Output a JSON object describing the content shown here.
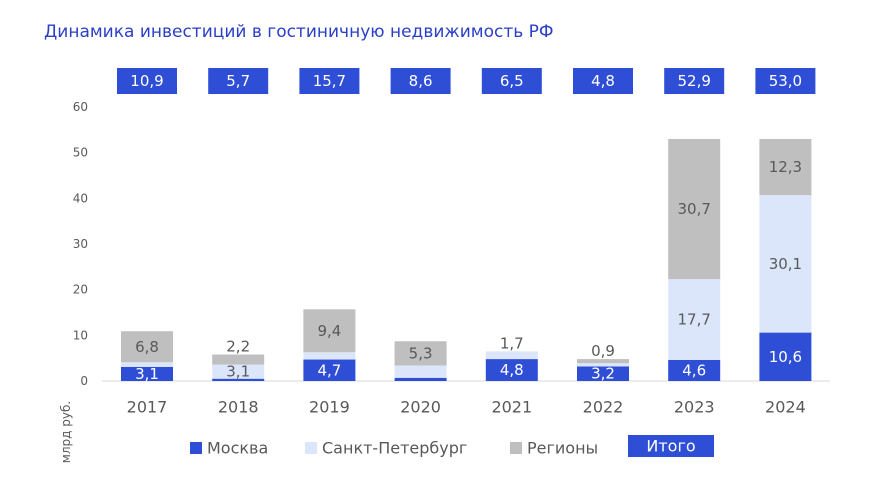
{
  "title": "Динамика инвестиций в гостиничную недвижимость РФ",
  "chart_data": {
    "type": "bar",
    "stacked": true,
    "title": "Динамика инвестиций в гостиничную недвижимость РФ",
    "xlabel": "",
    "ylabel": "млрд руб.",
    "ylim": [
      0,
      60
    ],
    "yticks": [
      0,
      10,
      20,
      30,
      40,
      50,
      60
    ],
    "grid": false,
    "legend_position": "bottom",
    "categories": [
      "2017",
      "2018",
      "2019",
      "2020",
      "2021",
      "2022",
      "2023",
      "2024"
    ],
    "series": [
      {
        "name": "Москва",
        "color": "#2e4ed6",
        "values": [
          3.1,
          0.5,
          4.7,
          0.7,
          4.8,
          3.2,
          4.6,
          10.6
        ],
        "labels": [
          "3,1",
          "",
          "4,7",
          "",
          "4,8",
          "3,2",
          "4,6",
          "10,6"
        ]
      },
      {
        "name": "Санкт-Петербург",
        "color": "#dce6fb",
        "values": [
          1.0,
          3.1,
          1.6,
          2.7,
          1.7,
          0.7,
          17.7,
          30.1
        ],
        "labels": [
          "",
          "3,1",
          "",
          "2,7",
          "1,7",
          "",
          "17,7",
          "30,1"
        ]
      },
      {
        "name": "Регионы",
        "color": "#bfbfbf",
        "values": [
          6.8,
          2.2,
          9.4,
          5.3,
          0.0,
          0.9,
          30.7,
          12.3
        ],
        "labels": [
          "6,8",
          "2,2",
          "9,4",
          "5,3",
          "",
          "0,9",
          "30,7",
          "12,3"
        ]
      }
    ],
    "totals": {
      "name": "Итого",
      "color": "#2e4ed6",
      "labels": [
        "10,9",
        "5,7",
        "15,7",
        "8,6",
        "6,5",
        "4,8",
        "52,9",
        "53,0"
      ]
    }
  }
}
